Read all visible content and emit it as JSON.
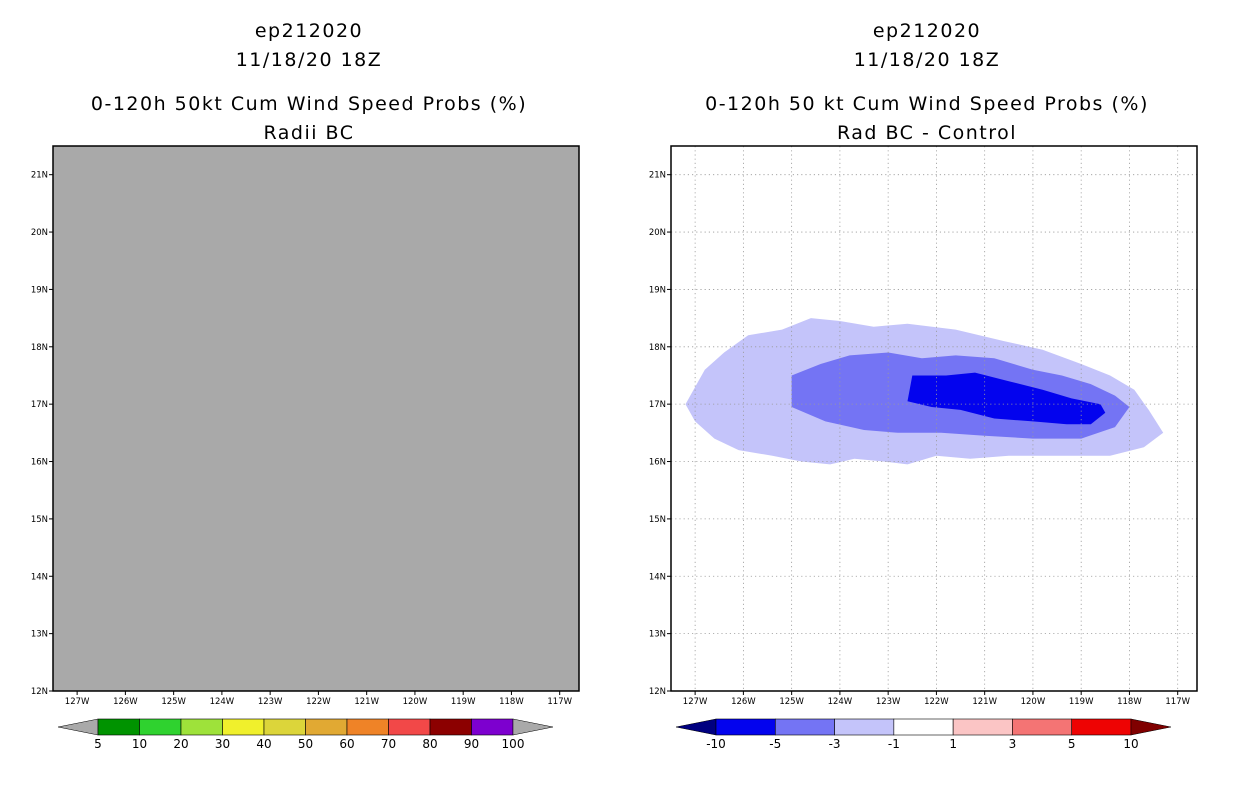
{
  "chart_data": [
    {
      "type": "heatmap",
      "name": "left",
      "title_lines": [
        "ep212020",
        "11/18/20 18Z",
        "0-120h 50kt Cum Wind Speed Probs (%)",
        "Radii BC"
      ],
      "lon_ticks": [
        "127W",
        "126W",
        "125W",
        "124W",
        "123W",
        "122W",
        "121W",
        "120W",
        "119W",
        "118W",
        "117W"
      ],
      "lat_ticks": [
        "12N",
        "13N",
        "14N",
        "15N",
        "16N",
        "17N",
        "18N",
        "19N",
        "20N",
        "21N"
      ],
      "xlim": [
        -127.5,
        -116.6
      ],
      "ylim": [
        12,
        21.5
      ],
      "grid": false,
      "background": "#a9a9a9",
      "colorbar": {
        "colors": [
          "#009300",
          "#2fd22f",
          "#9ee23a",
          "#f0f02c",
          "#dcd53a",
          "#e1a933",
          "#ef8327",
          "#f24848",
          "#8c0000",
          "#7d00cf"
        ],
        "end_colors": [
          "#a9a9a9",
          "#a9a9a9"
        ],
        "labels": [
          "5",
          "10",
          "20",
          "30",
          "40",
          "50",
          "60",
          "70",
          "80",
          "90",
          "100"
        ]
      }
    },
    {
      "type": "heatmap",
      "name": "right",
      "title_lines": [
        "ep212020",
        "11/18/20 18Z",
        "0-120h 50 kt Cum Wind Speed Probs (%)",
        "Rad BC - Control"
      ],
      "lon_ticks": [
        "127W",
        "126W",
        "125W",
        "124W",
        "123W",
        "122W",
        "121W",
        "120W",
        "119W",
        "118W",
        "117W"
      ],
      "lat_ticks": [
        "12N",
        "13N",
        "14N",
        "15N",
        "16N",
        "17N",
        "18N",
        "19N",
        "20N",
        "21N"
      ],
      "xlim": [
        -127.5,
        -116.6
      ],
      "ylim": [
        12,
        21.5
      ],
      "grid": true,
      "background": "#ffffff",
      "contours": [
        {
          "level": "-1 to -3",
          "color": "#c4c4fa",
          "points": [
            [
              -127.2,
              17.0
            ],
            [
              -126.8,
              17.6
            ],
            [
              -126.4,
              17.9
            ],
            [
              -125.9,
              18.2
            ],
            [
              -125.2,
              18.3
            ],
            [
              -124.6,
              18.5
            ],
            [
              -124.0,
              18.45
            ],
            [
              -123.3,
              18.35
            ],
            [
              -122.6,
              18.4
            ],
            [
              -121.6,
              18.3
            ],
            [
              -120.6,
              18.1
            ],
            [
              -119.8,
              17.95
            ],
            [
              -119.0,
              17.7
            ],
            [
              -118.4,
              17.5
            ],
            [
              -117.9,
              17.25
            ],
            [
              -117.6,
              16.9
            ],
            [
              -117.3,
              16.5
            ],
            [
              -117.7,
              16.25
            ],
            [
              -118.4,
              16.1
            ],
            [
              -119.4,
              16.1
            ],
            [
              -120.5,
              16.1
            ],
            [
              -121.3,
              16.05
            ],
            [
              -122.0,
              16.1
            ],
            [
              -122.4,
              16.0
            ],
            [
              -122.6,
              15.95
            ],
            [
              -123.1,
              16.0
            ],
            [
              -123.7,
              16.05
            ],
            [
              -124.2,
              15.95
            ],
            [
              -124.8,
              16.0
            ],
            [
              -125.4,
              16.1
            ],
            [
              -126.1,
              16.2
            ],
            [
              -126.6,
              16.4
            ],
            [
              -127.0,
              16.7
            ]
          ]
        },
        {
          "level": "-3 to -5",
          "color": "#7474f4",
          "points": [
            [
              -125.0,
              17.5
            ],
            [
              -124.4,
              17.7
            ],
            [
              -123.8,
              17.85
            ],
            [
              -123.0,
              17.9
            ],
            [
              -122.3,
              17.8
            ],
            [
              -121.6,
              17.85
            ],
            [
              -120.8,
              17.8
            ],
            [
              -120.0,
              17.6
            ],
            [
              -119.4,
              17.5
            ],
            [
              -118.8,
              17.35
            ],
            [
              -118.3,
              17.15
            ],
            [
              -118.0,
              16.95
            ],
            [
              -118.3,
              16.6
            ],
            [
              -119.0,
              16.4
            ],
            [
              -120.0,
              16.4
            ],
            [
              -121.0,
              16.45
            ],
            [
              -121.9,
              16.5
            ],
            [
              -122.8,
              16.5
            ],
            [
              -123.5,
              16.55
            ],
            [
              -124.3,
              16.7
            ],
            [
              -125.0,
              16.95
            ]
          ]
        },
        {
          "level": "-5 to -10",
          "color": "#0303ee",
          "points": [
            [
              -122.5,
              17.5
            ],
            [
              -121.8,
              17.5
            ],
            [
              -121.2,
              17.55
            ],
            [
              -120.5,
              17.4
            ],
            [
              -119.8,
              17.25
            ],
            [
              -119.2,
              17.1
            ],
            [
              -118.6,
              17.0
            ],
            [
              -118.5,
              16.85
            ],
            [
              -118.8,
              16.65
            ],
            [
              -119.3,
              16.65
            ],
            [
              -120.0,
              16.7
            ],
            [
              -120.8,
              16.75
            ],
            [
              -121.5,
              16.9
            ],
            [
              -122.1,
              16.95
            ],
            [
              -122.6,
              17.05
            ]
          ]
        }
      ],
      "colorbar": {
        "colors": [
          "#0303ee",
          "#7474f4",
          "#c4c4fa",
          "#ffffff",
          "#fbc5c5",
          "#f47474",
          "#ee0303"
        ],
        "end_colors": [
          "#000080",
          "#800000"
        ],
        "labels": [
          "-10",
          "-5",
          "-3",
          "-1",
          "1",
          "3",
          "5",
          "10"
        ]
      }
    }
  ]
}
